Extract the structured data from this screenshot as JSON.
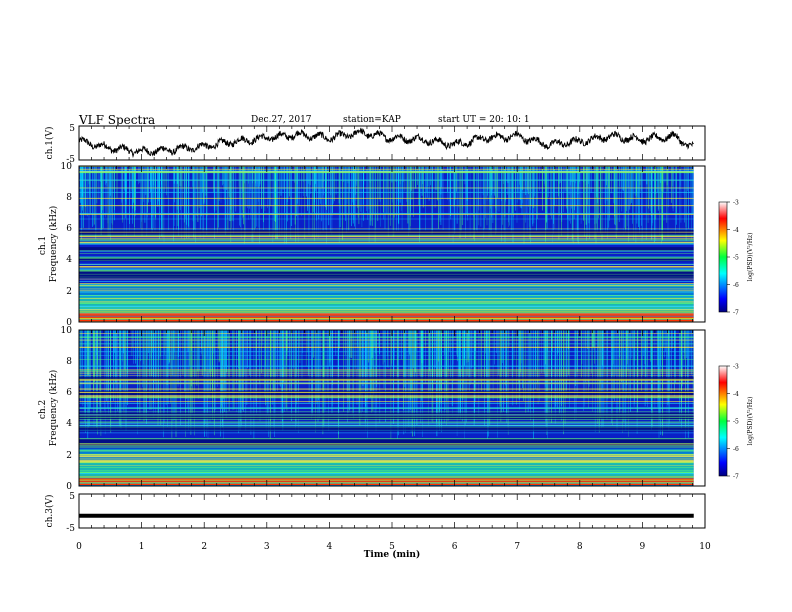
{
  "header": {
    "title": "VLF Spectra",
    "date": "Dec.27, 2017",
    "station": "station=KAP",
    "start": "start  UT  =   20: 10: 1"
  },
  "chart_data": [
    {
      "type": "line",
      "id": "ch1-voltage",
      "ylabel": "ch.1(V)",
      "ylim": [
        -5,
        5
      ],
      "yticks": [
        "5",
        "-5"
      ],
      "x_range": [
        0,
        9.82
      ],
      "envelope_x": [
        0,
        0.5,
        1,
        1.5,
        2,
        2.5,
        3,
        3.5,
        4,
        4.5,
        5,
        5.5,
        6,
        6.5,
        7,
        7.5,
        8,
        8.5,
        9,
        9.5,
        9.82
      ],
      "envelope_y": [
        0.5,
        -1.5,
        -2.5,
        -2.0,
        -1.0,
        0.5,
        1.5,
        2.5,
        1.5,
        3.0,
        1.5,
        1.0,
        -0.5,
        1.5,
        2.0,
        -0.5,
        0.5,
        2.0,
        1.0,
        2.0,
        -1.5
      ]
    },
    {
      "type": "heatmap",
      "id": "ch1-spectrogram",
      "ylabel": "ch.1\nFrequency  (kHz)",
      "ylim": [
        0,
        10
      ],
      "yticks": [
        "0",
        "2",
        "4",
        "6",
        "8",
        "10"
      ],
      "colorbar": {
        "label": "log(PSD)(V²/Hz)",
        "range": [
          -7,
          -3
        ],
        "ticks": [
          "-3",
          "-4",
          "-5",
          "-6",
          "-7"
        ]
      }
    },
    {
      "type": "heatmap",
      "id": "ch2-spectrogram",
      "ylabel": "ch.2\nFrequency  (kHz)",
      "ylim": [
        0,
        10
      ],
      "yticks": [
        "0",
        "2",
        "4",
        "6",
        "8",
        "10"
      ],
      "colorbar": {
        "label": "log(PSD)(V²/Hz)",
        "range": [
          -7,
          -3
        ],
        "ticks": [
          "-3",
          "-4",
          "-5",
          "-6",
          "-7"
        ]
      }
    },
    {
      "type": "line",
      "id": "ch3-voltage",
      "ylabel": "ch.3(V)",
      "ylim": [
        -5,
        5
      ],
      "yticks": [
        "5",
        "-5"
      ],
      "x": [
        0,
        9.82
      ],
      "y": [
        -1.4,
        -1.4
      ]
    }
  ],
  "xaxis": {
    "label": "Time  (min)",
    "range": [
      0,
      10
    ],
    "ticks": [
      "0",
      "1",
      "2",
      "3",
      "4",
      "5",
      "6",
      "7",
      "8",
      "9",
      "10"
    ]
  }
}
